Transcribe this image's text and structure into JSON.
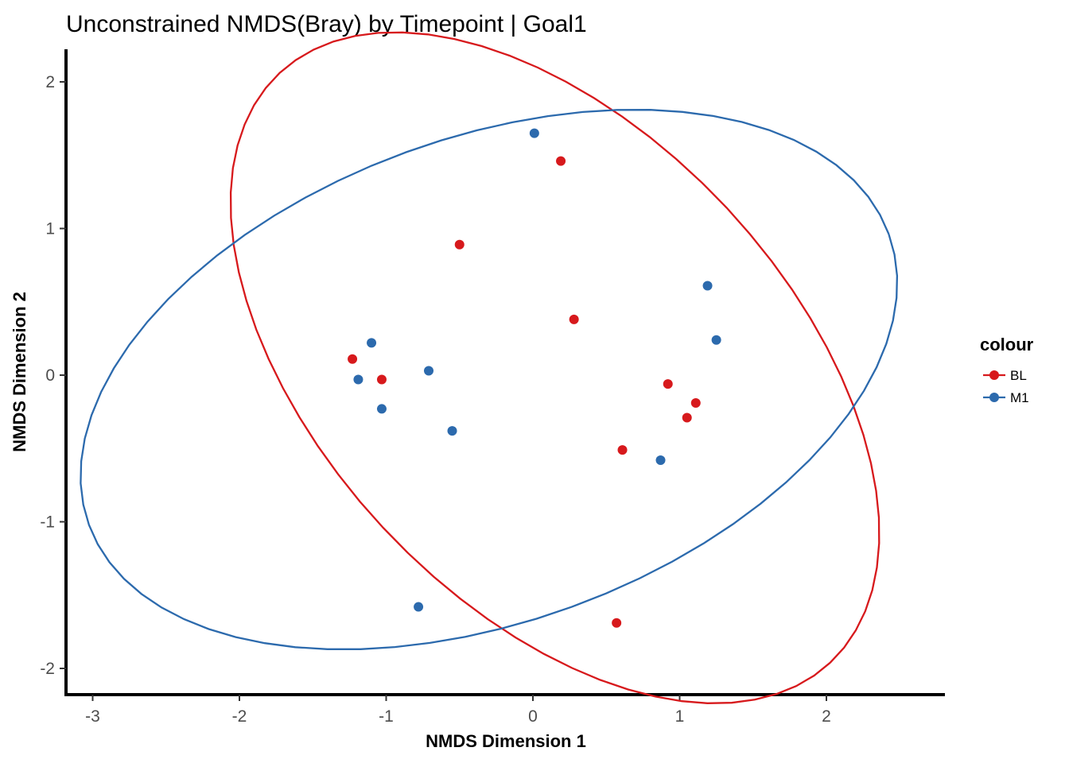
{
  "chart_data": {
    "type": "scatter",
    "title": "Unconstrained NMDS(Bray) by Timepoint | Goal1",
    "xlabel": "NMDS Dimension 1",
    "ylabel": "NMDS Dimension 2",
    "xlim": [
      -3.2,
      2.8
    ],
    "ylim": [
      -2.2,
      2.2
    ],
    "xticks": [
      -3,
      -2,
      -1,
      0,
      1,
      2
    ],
    "yticks": [
      -2,
      -1,
      0,
      1,
      2
    ],
    "xtick_labels": [
      "-3",
      "-2",
      "-1",
      "0",
      "1",
      "2"
    ],
    "ytick_labels": [
      "-2",
      "-1",
      "0",
      "1",
      "2"
    ],
    "grid": false,
    "legend": {
      "title": "colour",
      "position": "right",
      "entries": [
        "BL",
        "M1"
      ]
    },
    "series": [
      {
        "name": "BL",
        "color": "#d7191c",
        "points": [
          {
            "x": 0.19,
            "y": 1.46
          },
          {
            "x": -0.5,
            "y": 0.89
          },
          {
            "x": 0.28,
            "y": 0.38
          },
          {
            "x": -1.23,
            "y": 0.11
          },
          {
            "x": -1.03,
            "y": -0.03
          },
          {
            "x": 0.92,
            "y": -0.06
          },
          {
            "x": 1.11,
            "y": -0.19
          },
          {
            "x": 1.05,
            "y": -0.29
          },
          {
            "x": 0.61,
            "y": -0.51
          },
          {
            "x": 0.57,
            "y": -1.69
          }
        ],
        "ellipse": {
          "center": [
            0.15,
            0.05
          ],
          "semi_axes": [
            2.75,
            1.6
          ],
          "angle_deg": -47
        }
      },
      {
        "name": "M1",
        "color": "#2c6aad",
        "points": [
          {
            "x": 0.01,
            "y": 1.65
          },
          {
            "x": 1.19,
            "y": 0.61
          },
          {
            "x": 1.25,
            "y": 0.24
          },
          {
            "x": -1.1,
            "y": 0.22
          },
          {
            "x": -0.71,
            "y": 0.03
          },
          {
            "x": -1.19,
            "y": -0.03
          },
          {
            "x": -1.03,
            "y": -0.23
          },
          {
            "x": -0.55,
            "y": -0.38
          },
          {
            "x": 0.87,
            "y": -0.58
          },
          {
            "x": -0.78,
            "y": -1.58
          }
        ],
        "ellipse": {
          "center": [
            -0.3,
            -0.03
          ],
          "semi_axes": [
            2.9,
            1.65
          ],
          "angle_deg": 20
        }
      }
    ]
  }
}
